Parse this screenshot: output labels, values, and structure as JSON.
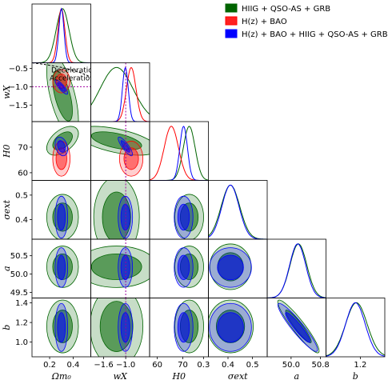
{
  "chart_data": {
    "type": "triangle-corner-plot",
    "parameters": [
      {
        "key": "Om",
        "label": "Ωm₀",
        "lim": [
          0.05,
          0.55
        ],
        "ticks": [
          0.2,
          0.4
        ],
        "tick_labels": [
          "0.2",
          "0.4"
        ]
      },
      {
        "key": "wx",
        "label": "wX",
        "lim": [
          -1.95,
          -0.35
        ],
        "ticks": [
          -1.6,
          -1.0
        ],
        "tick_labels": [
          "−1.6",
          "−1.0"
        ],
        "ytick_labels": [
          "−0.5",
          "−1.0",
          "−1.5"
        ],
        "yticks": [
          -0.5,
          -1.0,
          -1.5
        ]
      },
      {
        "key": "H0",
        "label": "H0",
        "lim": [
          57,
          80
        ],
        "ticks": [
          60,
          70
        ],
        "tick_labels": [
          "60",
          "70"
        ],
        "yticks": [
          70,
          60
        ],
        "ytick_labels": [
          "70",
          "60"
        ]
      },
      {
        "key": "sig",
        "label": "σext",
        "lim": [
          0.32,
          0.56
        ],
        "ticks": [
          0.3,
          0.4,
          0.5
        ],
        "tick_labels": [
          "0.3",
          "0.4",
          "0.5"
        ],
        "yticks": [
          0.5,
          0.4
        ],
        "ytick_labels": [
          "0.5",
          "0.4"
        ]
      },
      {
        "key": "a",
        "label": "a",
        "lim": [
          49.35,
          50.95
        ],
        "ticks": [
          50.0,
          50.8
        ],
        "tick_labels": [
          "50.0",
          "50.8"
        ],
        "yticks": [
          50.5,
          50.0,
          49.5
        ],
        "ytick_labels": [
          "50.5",
          "50.0",
          "49.5"
        ]
      },
      {
        "key": "b",
        "label": "b",
        "lim": [
          0.85,
          1.45
        ],
        "ticks": [
          1.2
        ],
        "tick_labels": [
          "1.2"
        ],
        "yticks": [
          1.4,
          1.2,
          1.0
        ],
        "ytick_labels": [
          "1.4",
          "1.2",
          "1.0"
        ]
      }
    ],
    "series": [
      {
        "name": "HIIG + QSO-AS + GRB",
        "color": "#006400",
        "fill": "#006400",
        "mean": {
          "Om": 0.31,
          "wx": -1.25,
          "H0": 72.5,
          "sig": 0.41,
          "a": 50.2,
          "b": 1.16
        },
        "sd": {
          "Om": 0.055,
          "wx": 0.45,
          "H0": 2.3,
          "sig": 0.038,
          "a": 0.23,
          "b": 0.11
        }
      },
      {
        "name": "H(z) + BAO",
        "color": "#ff0000",
        "fill": "#ff2020",
        "mean": {
          "Om": 0.3,
          "wx": -0.85,
          "H0": 65.5,
          "sig": null,
          "a": null,
          "b": null
        },
        "sd": {
          "Om": 0.03,
          "wx": 0.13,
          "H0": 2.8,
          "sig": null,
          "a": null,
          "b": null
        }
      },
      {
        "name": "H(z) + BAO + HIIG + QSO-AS + GRB",
        "color": "#0000ff",
        "fill": "#0000ff",
        "mean": {
          "Om": 0.3,
          "wx": -1.01,
          "H0": 70.3,
          "sig": 0.41,
          "a": 50.18,
          "b": 1.15
        },
        "sd": {
          "Om": 0.022,
          "wx": 0.08,
          "H0": 1.5,
          "sig": 0.035,
          "a": 0.22,
          "b": 0.1
        }
      }
    ],
    "annotations": {
      "deceleration": "Deceleration",
      "acceleration": "Acceleration"
    },
    "reference_lines": {
      "wx": -1.0,
      "Om_wx_line": "deceleration-acceleration boundary"
    }
  }
}
